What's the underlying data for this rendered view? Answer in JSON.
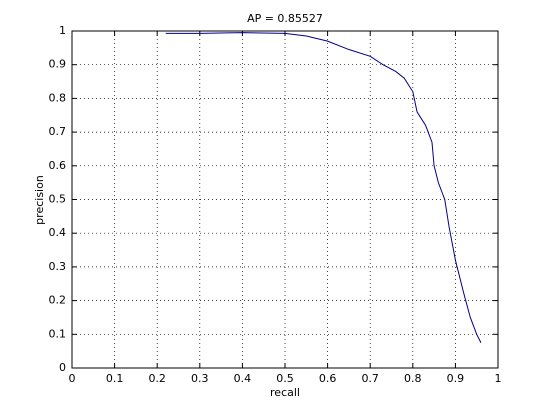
{
  "chart_data": {
    "type": "line",
    "title": "AP = 0.85527",
    "x_label": "recall",
    "y_label": "precision",
    "x": [
      0.22,
      0.3,
      0.4,
      0.5,
      0.55,
      0.6,
      0.65,
      0.7,
      0.73,
      0.76,
      0.78,
      0.8,
      0.81,
      0.83,
      0.845,
      0.85,
      0.86,
      0.875,
      0.885,
      0.9,
      0.92,
      0.935,
      0.95,
      0.96
    ],
    "values": [
      0.993,
      0.993,
      0.995,
      0.993,
      0.985,
      0.97,
      0.945,
      0.925,
      0.9,
      0.88,
      0.86,
      0.82,
      0.76,
      0.72,
      0.67,
      0.6,
      0.55,
      0.5,
      0.42,
      0.32,
      0.22,
      0.15,
      0.1,
      0.075
    ],
    "color": "#00008b",
    "xlim": [
      0,
      1
    ],
    "ylim": [
      0,
      1
    ],
    "xticks": [
      0,
      0.1,
      0.2,
      0.3,
      0.4,
      0.5,
      0.6,
      0.7,
      0.8,
      0.9,
      1
    ],
    "yticks": [
      0,
      0.1,
      0.2,
      0.3,
      0.4,
      0.5,
      0.6,
      0.7,
      0.8,
      0.9,
      1
    ],
    "grid": true
  }
}
